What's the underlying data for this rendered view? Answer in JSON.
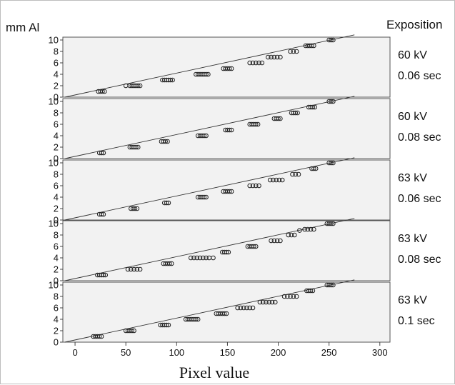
{
  "figure": {
    "y_label": "mm Al",
    "right_header": "Exposition",
    "x_label": "Pixel value"
  },
  "chart_data": {
    "type": "scatter",
    "xlabel": "Pixel value",
    "ylabel": "mm Al",
    "xlim": [
      -12,
      310
    ],
    "ylim": [
      0,
      10.5
    ],
    "x_ticks": [
      0,
      50,
      100,
      150,
      200,
      250,
      300
    ],
    "y_ticks": [
      0,
      2,
      4,
      6,
      8,
      10
    ],
    "grid": false,
    "panels": [
      {
        "kv": "60 kV",
        "time": "0.06 sec",
        "clusters": [
          {
            "x": [
              23,
              25,
              27,
              29
            ],
            "y": 1
          },
          {
            "x": [
              50,
              54,
              56,
              58,
              60,
              62,
              64
            ],
            "y": 2
          },
          {
            "x": [
              86,
              88,
              90,
              92,
              94,
              96
            ],
            "y": 3
          },
          {
            "x": [
              119,
              121,
              123,
              125,
              127,
              129,
              131
            ],
            "y": 4
          },
          {
            "x": [
              146,
              148,
              150,
              152,
              154
            ],
            "y": 5
          },
          {
            "x": [
              172,
              175,
              178,
              181,
              184
            ],
            "y": 6
          },
          {
            "x": [
              190,
              193,
              196,
              199,
              202
            ],
            "y": 7
          },
          {
            "x": [
              212,
              215,
              218
            ],
            "y": 8
          },
          {
            "x": [
              227,
              229,
              231,
              233,
              235
            ],
            "y": 9
          },
          {
            "x": [
              250,
              252,
              254
            ],
            "y": 10
          }
        ],
        "fit": {
          "x": [
            -10,
            275
          ],
          "y": [
            0.0,
            10.9
          ]
        }
      },
      {
        "kv": "60 kV",
        "time": "0.08 sec",
        "clusters": [
          {
            "x": [
              24,
              26,
              28
            ],
            "y": 1
          },
          {
            "x": [
              54,
              56,
              58,
              60,
              62
            ],
            "y": 2
          },
          {
            "x": [
              85,
              87,
              89,
              91
            ],
            "y": 3
          },
          {
            "x": [
              121,
              123,
              125,
              127,
              129
            ],
            "y": 4
          },
          {
            "x": [
              148,
              150,
              152,
              154
            ],
            "y": 5
          },
          {
            "x": [
              172,
              174,
              176,
              178,
              180
            ],
            "y": 6
          },
          {
            "x": [
              196,
              198,
              200,
              202
            ],
            "y": 7
          },
          {
            "x": [
              213,
              215,
              217,
              219
            ],
            "y": 8
          },
          {
            "x": [
              230,
              232,
              234,
              236
            ],
            "y": 9
          },
          {
            "x": [
              250,
              252,
              254
            ],
            "y": 10
          }
        ],
        "fit": {
          "x": [
            -10,
            275
          ],
          "y": [
            0.0,
            10.9
          ]
        }
      },
      {
        "kv": "63 kV",
        "time": "0.06 sec",
        "clusters": [
          {
            "x": [
              24,
              26,
              28
            ],
            "y": 1
          },
          {
            "x": [
              55,
              57,
              59,
              61
            ],
            "y": 2
          },
          {
            "x": [
              88,
              90,
              92
            ],
            "y": 3
          },
          {
            "x": [
              121,
              123,
              125,
              127,
              129
            ],
            "y": 4
          },
          {
            "x": [
              146,
              148,
              150,
              152,
              154
            ],
            "y": 5
          },
          {
            "x": [
              172,
              175,
              178,
              181
            ],
            "y": 6
          },
          {
            "x": [
              192,
              195,
              198,
              201,
              204
            ],
            "y": 7
          },
          {
            "x": [
              214,
              217,
              220
            ],
            "y": 8
          },
          {
            "x": [
              233,
              235,
              237
            ],
            "y": 9
          },
          {
            "x": [
              250,
              252,
              254
            ],
            "y": 10
          }
        ],
        "fit": {
          "x": [
            -10,
            275
          ],
          "y": [
            0.0,
            10.9
          ]
        }
      },
      {
        "kv": "63 kV",
        "time": "0.08 sec",
        "clusters": [
          {
            "x": [
              22,
              24,
              26,
              28,
              30
            ],
            "y": 1
          },
          {
            "x": [
              52,
              55,
              58,
              61,
              64
            ],
            "y": 2
          },
          {
            "x": [
              87,
              89,
              91,
              93,
              95
            ],
            "y": 3
          },
          {
            "x": [
              114,
              117,
              120,
              123,
              126,
              129,
              132,
              136
            ],
            "y": 4
          },
          {
            "x": [
              145,
              147,
              149,
              151
            ],
            "y": 5
          },
          {
            "x": [
              170,
              172,
              174,
              176,
              178
            ],
            "y": 6
          },
          {
            "x": [
              193,
              196,
              199,
              202
            ],
            "y": 7
          },
          {
            "x": [
              210,
              213,
              216
            ],
            "y": 8
          },
          {
            "x": [
              221
            ],
            "y": 8.8
          },
          {
            "x": [
              226,
              229,
              232,
              235
            ],
            "y": 9
          },
          {
            "x": [
              248,
              250,
              252,
              254
            ],
            "y": 10
          }
        ],
        "fit": {
          "x": [
            -10,
            275
          ],
          "y": [
            0.0,
            10.9
          ]
        }
      },
      {
        "kv": "63 kV",
        "time": "0.1 sec",
        "clusters": [
          {
            "x": [
              18,
              20,
              22,
              24,
              26
            ],
            "y": 1
          },
          {
            "x": [
              50,
              52,
              54,
              56,
              58
            ],
            "y": 2
          },
          {
            "x": [
              84,
              86,
              88,
              90,
              92
            ],
            "y": 3
          },
          {
            "x": [
              109,
              111,
              113,
              115,
              117,
              119,
              121
            ],
            "y": 4
          },
          {
            "x": [
              139,
              141,
              143,
              145,
              147,
              149
            ],
            "y": 5
          },
          {
            "x": [
              160,
              163,
              166,
              169,
              172,
              175
            ],
            "y": 6
          },
          {
            "x": [
              182,
              185,
              188,
              191,
              194,
              197
            ],
            "y": 7
          },
          {
            "x": [
              206,
              209,
              212,
              215,
              218
            ],
            "y": 8
          },
          {
            "x": [
              228,
              230,
              232,
              234
            ],
            "y": 9
          },
          {
            "x": [
              248,
              250,
              252,
              254
            ],
            "y": 10
          }
        ],
        "fit": {
          "x": [
            -10,
            275
          ],
          "y": [
            0.0,
            10.9
          ]
        }
      }
    ]
  }
}
